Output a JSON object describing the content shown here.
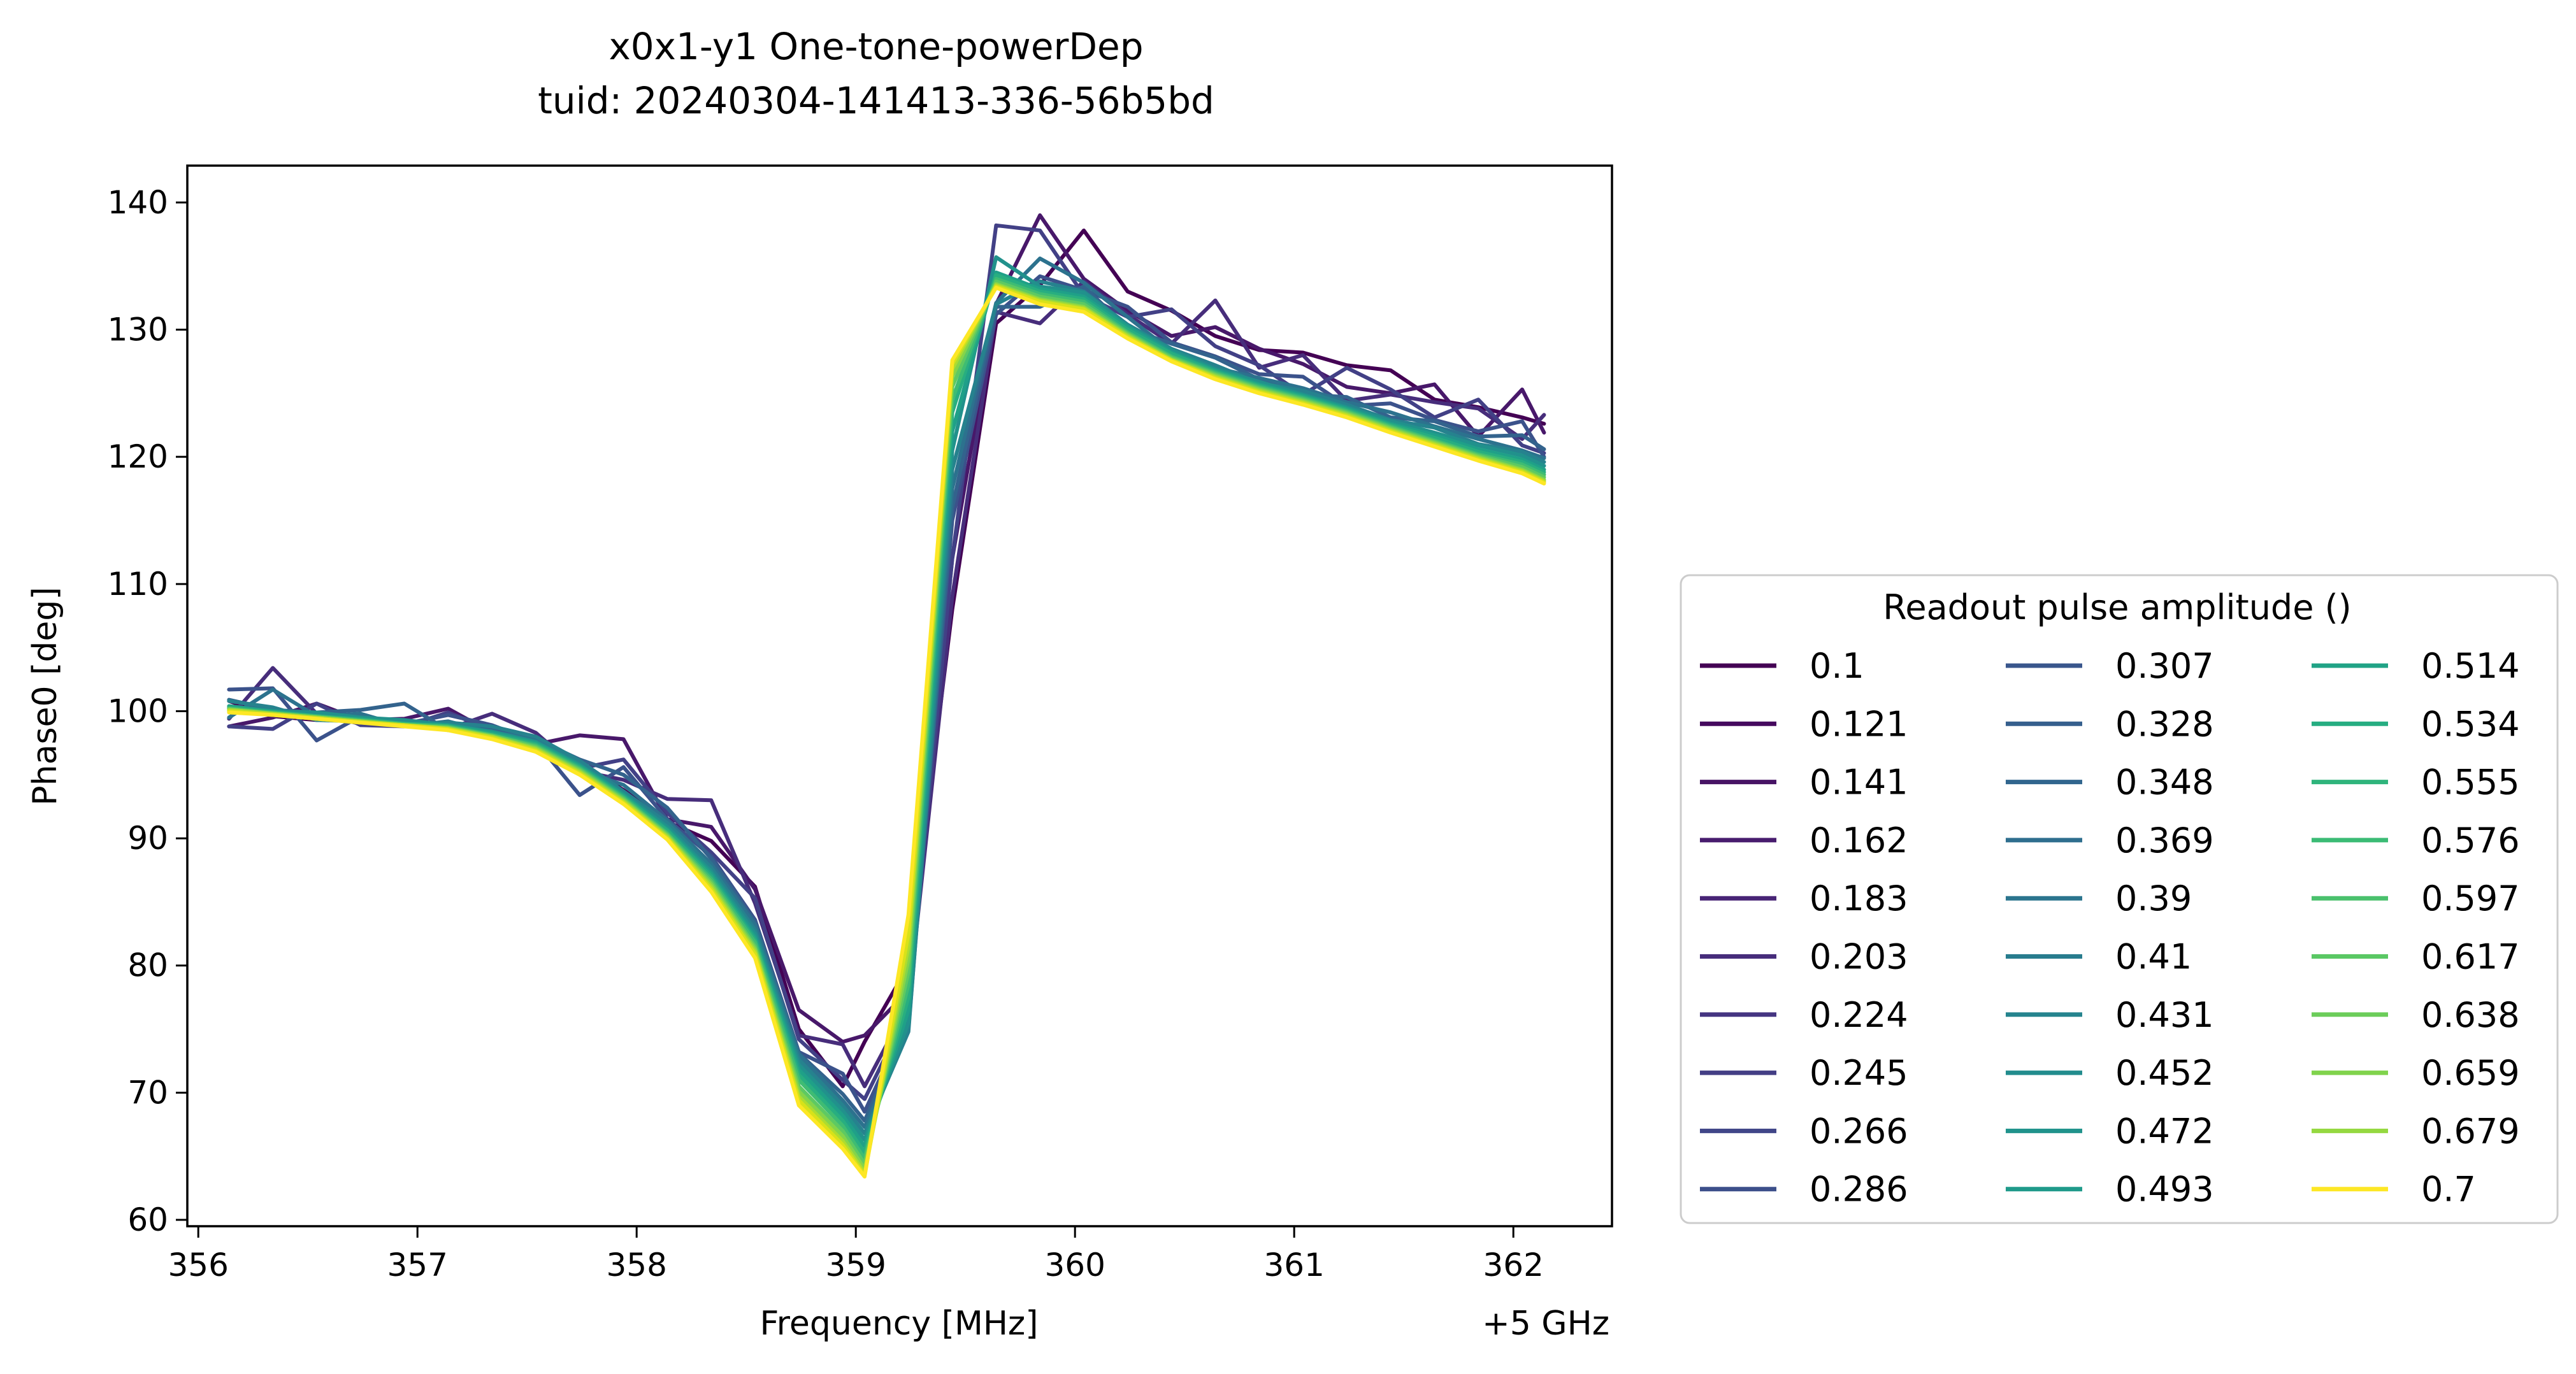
{
  "chart_data": {
    "type": "line",
    "title": "x0x1-y1 One-tone-powerDep",
    "subtitle": "tuid: 20240304-141413-336-56b5bd",
    "xlabel": "Frequency [MHz]",
    "x_offset_label": "+5 GHz",
    "ylabel": "Phase0 [deg]",
    "xlim": [
      355.95,
      362.45
    ],
    "ylim": [
      59.5,
      142.9
    ],
    "xticks": [
      356,
      357,
      358,
      359,
      360,
      361,
      362
    ],
    "yticks": [
      60,
      70,
      80,
      90,
      100,
      110,
      120,
      130,
      140
    ],
    "grid": false,
    "legend": {
      "title": "Readout pulse amplitude ()",
      "placement": "lower-right-outside",
      "columns": 3
    },
    "x": [
      356.14,
      356.34,
      356.54,
      356.74,
      356.94,
      357.14,
      357.34,
      357.54,
      357.74,
      357.94,
      358.14,
      358.34,
      358.54,
      358.74,
      358.94,
      359.04,
      359.24,
      359.44,
      359.64,
      359.84,
      360.04,
      360.24,
      360.44,
      360.64,
      360.84,
      361.04,
      361.24,
      361.44,
      361.64,
      361.84,
      362.04,
      362.14
    ],
    "series": [
      {
        "name": "0.1",
        "color": "#440154",
        "values": [
          100.8,
          99.6,
          99.3,
          99.3,
          99.1,
          98.7,
          98.3,
          97.4,
          95.9,
          93.8,
          91.3,
          89.8,
          86.2,
          75.0,
          70.5,
          74.0,
          80.0,
          108.0,
          130.5,
          133.5,
          137.8,
          133.0,
          131.5,
          129.5,
          128.4,
          128.2,
          127.2,
          126.8,
          124.5,
          123.9,
          123.1,
          122.6
        ]
      },
      {
        "name": "0.121",
        "color": "#48186a",
        "values": [
          98.8,
          99.5,
          100.6,
          99.3,
          99.4,
          100.2,
          98.3,
          97.4,
          98.1,
          97.8,
          91.5,
          90.9,
          86.0,
          76.5,
          74.0,
          74.5,
          78.0,
          112.0,
          132.0,
          139.0,
          134.0,
          131.5,
          129.5,
          130.2,
          128.5,
          127.3,
          125.5,
          125.0,
          125.7,
          121.6,
          125.3,
          121.9
        ]
      },
      {
        "name": "0.141",
        "color": "#472d7b",
        "values": [
          99.4,
          103.4,
          99.8,
          99.0,
          99.1,
          98.6,
          99.8,
          98.3,
          95.3,
          94.6,
          93.1,
          93.0,
          84.9,
          74.5,
          73.8,
          70.5,
          77.0,
          109.0,
          131.4,
          130.5,
          133.8,
          131.2,
          128.9,
          132.3,
          127.0,
          128.0,
          124.4,
          124.9,
          124.3,
          123.8,
          121.4,
          123.3
        ]
      },
      {
        "name": "0.162",
        "color": "#424086",
        "values": [
          98.8,
          98.6,
          100.6,
          98.9,
          98.8,
          99.9,
          98.5,
          97.2,
          95.5,
          96.2,
          92.0,
          88.9,
          85.3,
          74.2,
          71.0,
          69.5,
          76.5,
          112.0,
          138.2,
          137.8,
          132.7,
          131.0,
          131.6,
          128.7,
          127.2,
          124.9,
          127.0,
          125.3,
          123.1,
          124.5,
          120.9,
          120.3
        ]
      },
      {
        "name": "0.183",
        "color": "#3b528b",
        "values": [
          101.7,
          101.8,
          97.7,
          99.6,
          99.0,
          99.7,
          98.9,
          97.6,
          93.4,
          95.6,
          91.5,
          88.6,
          83.6,
          73.2,
          71.5,
          68.5,
          76.0,
          115.0,
          131.2,
          134.2,
          133.1,
          131.8,
          129.0,
          127.9,
          126.5,
          126.3,
          124.0,
          124.2,
          122.9,
          122.0,
          122.8,
          120.0
        ]
      },
      {
        "name": "0.203",
        "color": "#33638d",
        "values": [
          100.9,
          100.1,
          99.9,
          100.1,
          100.6,
          98.5,
          98.7,
          97.8,
          96.2,
          95.0,
          92.4,
          88.4,
          83.4,
          73.1,
          69.9,
          67.8,
          75.5,
          116.0,
          131.8,
          131.8,
          133.4,
          130.1,
          128.9,
          127.8,
          126.1,
          124.9,
          124.7,
          123.1,
          122.8,
          121.6,
          121.7,
          120.6
        ]
      },
      {
        "name": "0.224",
        "color": "#2c728e",
        "values": [
          99.5,
          101.7,
          99.6,
          99.8,
          98.8,
          99.2,
          98.3,
          97.9,
          95.4,
          94.2,
          91.4,
          88.0,
          83.2,
          73.0,
          69.4,
          67.3,
          75.0,
          117.5,
          132.1,
          135.6,
          133.7,
          131.0,
          128.3,
          127.0,
          126.2,
          125.4,
          124.3,
          123.5,
          122.4,
          121.4,
          120.5,
          119.9
        ]
      },
      {
        "name": "0.245",
        "color": "#26828e",
        "values": [
          100.8,
          100.3,
          99.3,
          99.2,
          98.9,
          99.1,
          98.8,
          98.0,
          96.1,
          93.7,
          91.2,
          87.7,
          82.8,
          72.6,
          69.0,
          66.8,
          74.8,
          119.0,
          132.0,
          133.8,
          133.0,
          130.4,
          128.5,
          127.2,
          125.8,
          125.2,
          124.1,
          122.9,
          122.3,
          121.0,
          120.4,
          119.6
        ]
      },
      {
        "name": "0.266",
        "color": "#21918c",
        "values": [
          100.2,
          100.0,
          99.9,
          99.5,
          99.3,
          98.9,
          98.4,
          97.6,
          95.8,
          93.5,
          90.9,
          87.4,
          82.5,
          72.2,
          68.6,
          66.3,
          75.5,
          120.5,
          135.7,
          133.4,
          132.9,
          130.3,
          128.4,
          126.9,
          125.9,
          124.9,
          123.9,
          122.8,
          121.9,
          120.9,
          120.1,
          119.3
        ]
      },
      {
        "name": "0.286",
        "color": "#1fa088",
        "values": [
          100.4,
          100.0,
          99.6,
          99.4,
          99.0,
          98.9,
          98.3,
          97.5,
          95.7,
          93.4,
          90.7,
          87.2,
          82.2,
          71.8,
          68.2,
          65.8,
          76.5,
          122.0,
          134.5,
          133.2,
          132.6,
          130.2,
          128.2,
          126.8,
          125.7,
          124.8,
          123.8,
          122.6,
          121.7,
          120.6,
          119.8,
          119.0
        ]
      },
      {
        "name": "0.307",
        "color": "#28ae80",
        "values": [
          100.3,
          99.9,
          99.6,
          99.3,
          99.0,
          98.8,
          98.2,
          97.4,
          95.6,
          93.3,
          90.6,
          87.0,
          82.0,
          71.4,
          67.8,
          65.3,
          77.5,
          123.5,
          134.3,
          133.0,
          132.4,
          130.0,
          128.1,
          126.7,
          125.6,
          124.7,
          123.7,
          122.5,
          121.5,
          120.4,
          119.6,
          118.8
        ]
      },
      {
        "name": "0.328",
        "color": "#3fbc73",
        "values": [
          100.2,
          99.9,
          99.6,
          99.3,
          99.0,
          98.8,
          98.1,
          97.3,
          95.5,
          93.2,
          90.4,
          86.8,
          81.8,
          71.0,
          67.4,
          64.8,
          78.5,
          124.5,
          134.0,
          132.8,
          132.2,
          129.8,
          127.9,
          126.6,
          125.5,
          124.6,
          123.6,
          122.4,
          121.3,
          120.2,
          119.4,
          118.6
        ]
      },
      {
        "name": "0.348",
        "color": "#5ec962",
        "values": [
          100.2,
          99.8,
          99.5,
          99.2,
          98.9,
          98.7,
          98.1,
          97.2,
          95.4,
          93.1,
          90.3,
          86.6,
          81.5,
          70.5,
          67.0,
          64.4,
          79.5,
          125.5,
          133.8,
          132.6,
          132.0,
          129.7,
          127.8,
          126.5,
          125.4,
          124.5,
          123.5,
          122.3,
          121.2,
          120.1,
          119.2,
          118.4
        ]
      },
      {
        "name": "0.369",
        "color": "#84d44b",
        "values": [
          100.1,
          99.8,
          99.5,
          99.2,
          98.9,
          98.7,
          98.0,
          97.1,
          95.3,
          93.0,
          90.2,
          86.4,
          81.3,
          70.1,
          66.6,
          64.0,
          80.5,
          126.3,
          133.6,
          132.4,
          131.8,
          129.6,
          127.7,
          126.4,
          125.3,
          124.4,
          123.4,
          122.2,
          121.1,
          120.0,
          119.0,
          118.2
        ]
      },
      {
        "name": "0.39",
        "color": "#addc30",
        "values": [
          100.1,
          99.8,
          99.5,
          99.2,
          98.9,
          98.6,
          98.0,
          97.0,
          95.2,
          92.9,
          90.1,
          86.2,
          81.1,
          69.7,
          66.2,
          63.7,
          81.5,
          126.9,
          133.5,
          132.3,
          131.7,
          129.5,
          127.6,
          126.3,
          125.2,
          124.3,
          123.3,
          122.1,
          121.0,
          119.9,
          118.9,
          118.1
        ]
      },
      {
        "name": "0.41",
        "color": "#d8e219",
        "values": [
          100.0,
          99.7,
          99.4,
          99.1,
          98.9,
          98.6,
          97.9,
          96.9,
          95.1,
          92.8,
          90.0,
          86.0,
          80.9,
          69.4,
          65.9,
          63.5,
          82.5,
          127.3,
          133.4,
          132.2,
          131.6,
          129.4,
          127.6,
          126.2,
          125.1,
          124.2,
          123.2,
          122.0,
          120.9,
          119.8,
          118.8,
          118.0
        ]
      },
      {
        "name": "0.7",
        "color": "#fde725",
        "values": [
          99.9,
          99.7,
          99.4,
          99.1,
          98.8,
          98.5,
          97.8,
          96.8,
          95.0,
          92.7,
          89.9,
          85.8,
          80.6,
          69.0,
          65.6,
          63.4,
          84.0,
          127.6,
          133.3,
          132.0,
          131.4,
          129.3,
          127.5,
          126.1,
          125.0,
          124.1,
          123.1,
          121.9,
          120.8,
          119.7,
          118.7,
          117.9
        ]
      }
    ],
    "legend_entries": [
      {
        "label": "0.1",
        "color": "#440154"
      },
      {
        "label": "0.121",
        "color": "#45095e"
      },
      {
        "label": "0.141",
        "color": "#471365"
      },
      {
        "label": "0.162",
        "color": "#481c6e"
      },
      {
        "label": "0.183",
        "color": "#482576"
      },
      {
        "label": "0.203",
        "color": "#472d7b"
      },
      {
        "label": "0.224",
        "color": "#453581"
      },
      {
        "label": "0.245",
        "color": "#433e85"
      },
      {
        "label": "0.266",
        "color": "#404688"
      },
      {
        "label": "0.286",
        "color": "#3c4f8a"
      },
      {
        "label": "0.307",
        "color": "#39568c"
      },
      {
        "label": "0.328",
        "color": "#355f8d"
      },
      {
        "label": "0.348",
        "color": "#31668e"
      },
      {
        "label": "0.369",
        "color": "#2e6e8e"
      },
      {
        "label": "0.39",
        "color": "#2b758e"
      },
      {
        "label": "0.41",
        "color": "#287c8e"
      },
      {
        "label": "0.431",
        "color": "#25848e"
      },
      {
        "label": "0.452",
        "color": "#228c8d"
      },
      {
        "label": "0.472",
        "color": "#20938c"
      },
      {
        "label": "0.493",
        "color": "#1f9a8a"
      },
      {
        "label": "0.514",
        "color": "#20a386"
      },
      {
        "label": "0.534",
        "color": "#26ad81"
      },
      {
        "label": "0.555",
        "color": "#2fb47c"
      },
      {
        "label": "0.576",
        "color": "#3bbb75"
      },
      {
        "label": "0.597",
        "color": "#4ac16d"
      },
      {
        "label": "0.617",
        "color": "#5ac864"
      },
      {
        "label": "0.638",
        "color": "#6ccd5a"
      },
      {
        "label": "0.659",
        "color": "#80d34c"
      },
      {
        "label": "0.679",
        "color": "#95d840"
      },
      {
        "label": "0.7",
        "color": "#fde725"
      }
    ]
  }
}
